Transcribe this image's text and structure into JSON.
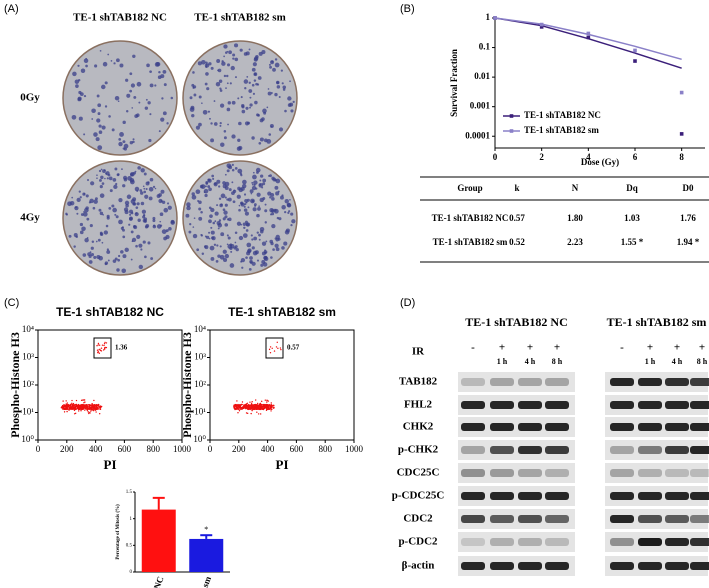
{
  "panels": {
    "a": "(A)",
    "b": "(B)",
    "c": "(C)",
    "d": "(D)"
  },
  "colonies": {
    "columns": [
      "TE-1 shTAB182 NC",
      "TE-1 shTAB182 sm"
    ],
    "rows": [
      "0Gy",
      "4Gy"
    ]
  },
  "chart_data": [
    {
      "type": "line",
      "x_label": "Dose (Gy)",
      "y_label": "Survival Fraction",
      "x": [
        0,
        2,
        4,
        6,
        8
      ],
      "xlim": [
        0,
        9
      ],
      "xticks": [
        0,
        2,
        4,
        6,
        8
      ],
      "ylim": [
        4e-05,
        1
      ],
      "yticks": [
        1,
        0.1,
        0.01,
        0.001,
        0.0001
      ],
      "log_y": true,
      "legend": "lower left",
      "series": [
        {
          "name": "TE-1 shTAB182 NC",
          "color": "#3b1f7a",
          "values": [
            1,
            0.5,
            0.22,
            0.035,
            0.00012
          ],
          "fit": [
            1,
            0.55,
            0.2,
            0.065,
            0.02
          ]
        },
        {
          "name": "TE-1 shTAB182 sm",
          "color": "#8a80c8",
          "values": [
            1,
            0.6,
            0.3,
            0.08,
            0.003
          ],
          "fit": [
            1,
            0.62,
            0.28,
            0.11,
            0.04
          ]
        }
      ]
    },
    {
      "type": "bar",
      "y_label": "Percentage of Mitosis (%)",
      "categories": [
        "NC",
        "sm"
      ],
      "values": [
        1.17,
        0.62
      ],
      "errors": [
        0.22,
        0.07
      ],
      "colors": [
        "#ff1010",
        "#1a1ae0"
      ],
      "ylim": [
        0,
        1.5
      ],
      "yticks": [
        0,
        0.5,
        1,
        1.5
      ],
      "annotation": "*"
    }
  ],
  "table": {
    "header": [
      "Group",
      "k",
      "N",
      "Dq",
      "D0"
    ],
    "rows": [
      [
        "TE-1 shTAB182 NC",
        "0.57",
        "1.80",
        "1.03",
        "1.76"
      ],
      [
        "TE-1 shTAB182 sm",
        "0.52",
        "2.23",
        "1.55 *",
        "1.94 *"
      ]
    ]
  },
  "flow": {
    "titles": [
      "TE-1 shTAB182 NC",
      "TE-1 shTAB182 sm"
    ],
    "gates": [
      "1.36",
      "0.57"
    ],
    "y_label": "Phospho-Histone H3",
    "x_label": "PI",
    "yticks": [
      "10⁰",
      "10¹",
      "10²",
      "10³",
      "10⁴"
    ],
    "xticks": [
      "0",
      "200",
      "400",
      "600",
      "800",
      "1000"
    ]
  },
  "blot": {
    "ir_label": "IR",
    "groups": [
      {
        "title": "TE-1 shTAB182 NC",
        "ir": [
          "-",
          "+",
          "+",
          "+"
        ],
        "times": [
          "1 h",
          "4 h",
          "8 h"
        ]
      },
      {
        "title": "TE-1 shTAB182 sm",
        "ir": [
          "-",
          "+",
          "+",
          "+"
        ],
        "times": [
          "1 h",
          "4 h",
          "8 h"
        ]
      }
    ],
    "proteins": [
      "TAB182",
      "FHL2",
      "CHK2",
      "p-CHK2",
      "CDC25C",
      "p-CDC25C",
      "CDC2",
      "p-CDC2",
      "β-actin"
    ]
  }
}
